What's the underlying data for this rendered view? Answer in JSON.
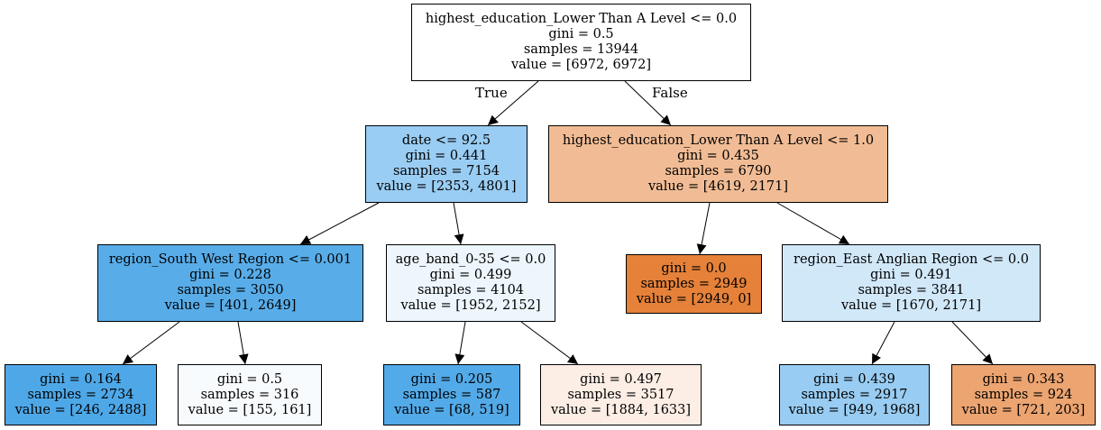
{
  "nodes": [
    {
      "id": "n0",
      "lines": [
        "highest_education_Lower Than A Level <= 0.0",
        "gini = 0.5",
        "samples = 13944",
        "value = [6972, 6972]"
      ],
      "fill": "#ffffff"
    },
    {
      "id": "n1",
      "lines": [
        "date <= 92.5",
        "gini = 0.441",
        "samples = 7154",
        "value = [2353, 4801]"
      ],
      "fill": "#9acdf3"
    },
    {
      "id": "n2",
      "lines": [
        "highest_education_Lower Than A Level <= 1.0",
        "gini = 0.435",
        "samples = 6790",
        "value = [4619, 2171]"
      ],
      "fill": "#f1bc95"
    },
    {
      "id": "n3",
      "lines": [
        "region_South West Region <= 0.001",
        "gini = 0.228",
        "samples = 3050",
        "value = [401, 2649]"
      ],
      "fill": "#58ade9"
    },
    {
      "id": "n4",
      "lines": [
        "age_band_0-35 <= 0.0",
        "gini = 0.499",
        "samples = 4104",
        "value = [1952, 2152]"
      ],
      "fill": "#edf6fd"
    },
    {
      "id": "n5",
      "lines": [
        "gini = 0.0",
        "samples = 2949",
        "value = [2949, 0]"
      ],
      "fill": "#e58139"
    },
    {
      "id": "n6",
      "lines": [
        "region_East Anglian Region <= 0.0",
        "gini = 0.491",
        "samples = 3841",
        "value = [1670, 2171]"
      ],
      "fill": "#d1e8f9"
    },
    {
      "id": "n7",
      "lines": [
        "gini = 0.164",
        "samples = 2734",
        "value = [246, 2488]"
      ],
      "fill": "#4ea8e8"
    },
    {
      "id": "n8",
      "lines": [
        "gini = 0.5",
        "samples = 316",
        "value = [155, 161]"
      ],
      "fill": "#f8fbfe"
    },
    {
      "id": "n9",
      "lines": [
        "gini = 0.205",
        "samples = 587",
        "value = [68, 519]"
      ],
      "fill": "#53aae8"
    },
    {
      "id": "n10",
      "lines": [
        "gini = 0.497",
        "samples = 3517",
        "value = [1884, 1633]"
      ],
      "fill": "#fceee5"
    },
    {
      "id": "n11",
      "lines": [
        "gini = 0.439",
        "samples = 2917",
        "value = [949, 1968]"
      ],
      "fill": "#98ccf2"
    },
    {
      "id": "n12",
      "lines": [
        "gini = 0.343",
        "samples = 924",
        "value = [721, 203]"
      ],
      "fill": "#eca471"
    }
  ],
  "edges": [
    {
      "from": "n0",
      "to": "n1",
      "label": "True"
    },
    {
      "from": "n0",
      "to": "n2",
      "label": "False"
    },
    {
      "from": "n1",
      "to": "n3",
      "label": ""
    },
    {
      "from": "n1",
      "to": "n4",
      "label": ""
    },
    {
      "from": "n2",
      "to": "n5",
      "label": ""
    },
    {
      "from": "n2",
      "to": "n6",
      "label": ""
    },
    {
      "from": "n3",
      "to": "n7",
      "label": ""
    },
    {
      "from": "n3",
      "to": "n8",
      "label": ""
    },
    {
      "from": "n4",
      "to": "n9",
      "label": ""
    },
    {
      "from": "n4",
      "to": "n10",
      "label": ""
    },
    {
      "from": "n6",
      "to": "n11",
      "label": ""
    },
    {
      "from": "n6",
      "to": "n12",
      "label": ""
    }
  ]
}
